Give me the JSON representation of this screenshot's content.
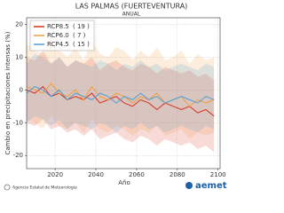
{
  "chart_data": {
    "type": "line",
    "title": "LAS PALMAS (FUERTEVENTURA)",
    "subtitle": "ANUAL",
    "ylabel": "Cambio en precipitaciones intensas (%)",
    "xlabel": "Año",
    "x": [
      2006,
      2010,
      2014,
      2018,
      2022,
      2026,
      2030,
      2034,
      2038,
      2042,
      2046,
      2050,
      2054,
      2058,
      2062,
      2066,
      2070,
      2074,
      2078,
      2082,
      2086,
      2090,
      2094,
      2098
    ],
    "xlim": [
      2006,
      2101
    ],
    "xticks": [
      2020,
      2040,
      2060,
      2080,
      2100
    ],
    "ylim": [
      -24,
      22
    ],
    "yticks": [
      -20,
      -10,
      0,
      10,
      20
    ],
    "grid": true,
    "series": [
      {
        "name": "RCP8.5",
        "legend_note": "( 19 )",
        "color": "#d7301f",
        "values": [
          0,
          -1,
          1,
          -2,
          -1,
          -3,
          -2,
          -3,
          -1,
          -4,
          -3,
          -2,
          -4,
          -5,
          -3,
          -4,
          -6,
          -4,
          -5,
          -6,
          -5,
          -7,
          -6,
          -8
        ],
        "upper": [
          10,
          9,
          12,
          8,
          10,
          7,
          9,
          8,
          10,
          6,
          8,
          9,
          7,
          6,
          8,
          7,
          5,
          7,
          6,
          5,
          6,
          4,
          5,
          3
        ],
        "lower": [
          -10,
          -11,
          -9,
          -12,
          -11,
          -13,
          -12,
          -14,
          -12,
          -15,
          -14,
          -13,
          -15,
          -16,
          -14,
          -15,
          -17,
          -15,
          -16,
          -17,
          -16,
          -18,
          -17,
          -19
        ]
      },
      {
        "name": "RCP6.0",
        "legend_note": "( 7 )",
        "color": "#f39c3c",
        "values": [
          1,
          0,
          -1,
          2,
          -1,
          -2,
          0,
          -3,
          1,
          -2,
          -3,
          -1,
          -2,
          -4,
          -2,
          -3,
          -1,
          -4,
          -3,
          -2,
          -5,
          -3,
          -4,
          -3
        ],
        "upper": [
          14,
          12,
          11,
          16,
          12,
          10,
          13,
          9,
          15,
          11,
          10,
          13,
          12,
          9,
          12,
          10,
          13,
          9,
          10,
          12,
          8,
          11,
          9,
          10
        ],
        "lower": [
          -9,
          -10,
          -12,
          -8,
          -11,
          -12,
          -10,
          -13,
          -9,
          -12,
          -13,
          -11,
          -12,
          -14,
          -12,
          -13,
          -11,
          -14,
          -13,
          -12,
          -15,
          -13,
          -14,
          -13
        ]
      },
      {
        "name": "RCP4.5",
        "legend_note": "( 15 )",
        "color": "#4f9fd6",
        "values": [
          -1,
          1,
          0,
          -2,
          0,
          -3,
          -1,
          -2,
          -3,
          -1,
          -2,
          -4,
          -2,
          -3,
          -1,
          -3,
          -2,
          -4,
          -3,
          -2,
          -3,
          -4,
          -2,
          -3
        ],
        "upper": [
          8,
          11,
          10,
          8,
          10,
          7,
          9,
          8,
          7,
          9,
          8,
          6,
          8,
          7,
          9,
          7,
          8,
          6,
          7,
          8,
          7,
          6,
          8,
          7
        ],
        "lower": [
          -10,
          -8,
          -9,
          -11,
          -9,
          -12,
          -10,
          -11,
          -12,
          -10,
          -11,
          -13,
          -11,
          -12,
          -10,
          -12,
          -11,
          -13,
          -12,
          -11,
          -12,
          -13,
          -11,
          -12
        ]
      }
    ]
  },
  "footer": {
    "agency": "Agencia Estatal de Meteorología",
    "logo": "aemet"
  }
}
